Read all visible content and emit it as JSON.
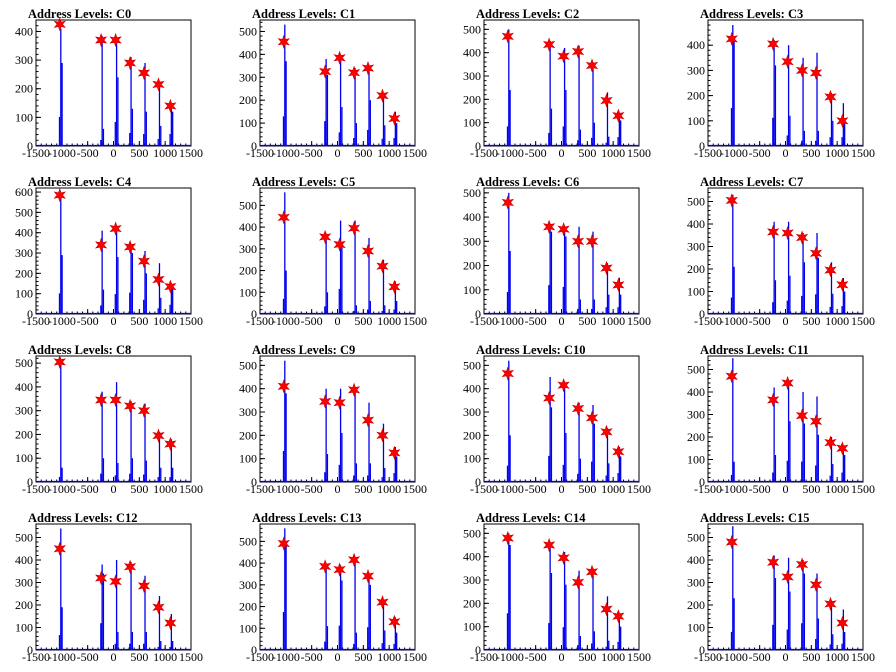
{
  "chart_data": [
    {
      "type": "histogram",
      "title": "Address Levels: C0",
      "xlim": [
        -1500,
        1500
      ],
      "ylim": [
        0,
        440
      ],
      "x_ticks": [
        -1500,
        -1000,
        -500,
        0,
        500,
        1000,
        1500
      ],
      "y_ticks": [
        0,
        100,
        200,
        300,
        400
      ],
      "peaks_x": [
        -1020,
        -220,
        60,
        340,
        610,
        890,
        1120
      ],
      "spike_heights": [
        [
          410,
          290
        ],
        [
          385,
          60
        ],
        [
          380,
          240
        ],
        [
          310,
          130
        ],
        [
          290,
          120
        ],
        [
          220,
          70
        ],
        [
          150,
          120
        ]
      ],
      "markers_y": [
        425,
        370,
        370,
        290,
        255,
        215,
        140
      ]
    },
    {
      "type": "histogram",
      "title": "Address Levels: C1",
      "xlim": [
        -1500,
        1500
      ],
      "ylim": [
        0,
        550
      ],
      "x_ticks": [
        -1500,
        -1000,
        -500,
        0,
        500,
        1000,
        1500
      ],
      "y_ticks": [
        0,
        100,
        200,
        300,
        400,
        500
      ],
      "peaks_x": [
        -1020,
        -220,
        60,
        340,
        610,
        890,
        1120
      ],
      "spike_heights": [
        [
          530,
          370
        ],
        [
          380,
          310
        ],
        [
          390,
          170
        ],
        [
          340,
          100
        ],
        [
          350,
          200
        ],
        [
          230,
          90
        ],
        [
          150,
          100
        ]
      ],
      "markers_y": [
        455,
        325,
        385,
        320,
        340,
        220,
        120
      ]
    },
    {
      "type": "histogram",
      "title": "Address Levels: C2",
      "xlim": [
        -1500,
        1500
      ],
      "ylim": [
        0,
        540
      ],
      "x_ticks": [
        -1500,
        -1000,
        -500,
        0,
        500,
        1000,
        1500
      ],
      "y_ticks": [
        0,
        100,
        200,
        300,
        400,
        500
      ],
      "peaks_x": [
        -1020,
        -220,
        60,
        340,
        610,
        890,
        1120
      ],
      "spike_heights": [
        [
          500,
          240
        ],
        [
          450,
          160
        ],
        [
          420,
          240
        ],
        [
          430,
          70
        ],
        [
          360,
          100
        ],
        [
          230,
          40
        ],
        [
          140,
          110
        ]
      ],
      "markers_y": [
        470,
        435,
        385,
        405,
        345,
        195,
        130
      ]
    },
    {
      "type": "histogram",
      "title": "Address Levels: C3",
      "xlim": [
        -1500,
        1500
      ],
      "ylim": [
        0,
        500
      ],
      "x_ticks": [
        -1500,
        -1000,
        -500,
        0,
        500,
        1000,
        1500
      ],
      "y_ticks": [
        0,
        100,
        200,
        300,
        400
      ],
      "peaks_x": [
        -1020,
        -220,
        60,
        340,
        610,
        890,
        1120
      ],
      "spike_heights": [
        [
          480,
          430
        ],
        [
          420,
          320
        ],
        [
          400,
          120
        ],
        [
          350,
          60
        ],
        [
          370,
          60
        ],
        [
          210,
          100
        ],
        [
          170,
          100
        ]
      ],
      "markers_y": [
        425,
        405,
        335,
        300,
        290,
        195,
        100
      ]
    },
    {
      "type": "histogram",
      "title": "Address Levels: C4",
      "xlim": [
        -1500,
        1500
      ],
      "ylim": [
        0,
        620
      ],
      "x_ticks": [
        -1500,
        -1000,
        -500,
        0,
        500,
        1000,
        1500
      ],
      "y_ticks": [
        0,
        100,
        200,
        300,
        400,
        500,
        600
      ],
      "peaks_x": [
        -1020,
        -220,
        60,
        340,
        610,
        890,
        1120
      ],
      "spike_heights": [
        [
          580,
          290
        ],
        [
          410,
          120
        ],
        [
          420,
          280
        ],
        [
          340,
          300
        ],
        [
          310,
          200
        ],
        [
          250,
          80
        ],
        [
          150,
          130
        ]
      ],
      "markers_y": [
        585,
        340,
        420,
        330,
        260,
        170,
        135
      ]
    },
    {
      "type": "histogram",
      "title": "Address Levels: C5",
      "xlim": [
        -1500,
        1500
      ],
      "ylim": [
        0,
        580
      ],
      "x_ticks": [
        -1500,
        -1000,
        -500,
        0,
        500,
        1000,
        1500
      ],
      "y_ticks": [
        0,
        100,
        200,
        300,
        400,
        500
      ],
      "peaks_x": [
        -1020,
        -220,
        60,
        340,
        610,
        890,
        1120
      ],
      "spike_heights": [
        [
          560,
          200
        ],
        [
          370,
          100
        ],
        [
          430,
          330
        ],
        [
          430,
          40
        ],
        [
          350,
          60
        ],
        [
          250,
          40
        ],
        [
          150,
          60
        ]
      ],
      "markers_y": [
        445,
        355,
        320,
        395,
        290,
        220,
        125
      ]
    },
    {
      "type": "histogram",
      "title": "Address Levels: C6",
      "xlim": [
        -1500,
        1500
      ],
      "ylim": [
        0,
        520
      ],
      "x_ticks": [
        -1500,
        -1000,
        -500,
        0,
        500,
        1000,
        1500
      ],
      "y_ticks": [
        0,
        100,
        200,
        300,
        400,
        500
      ],
      "peaks_x": [
        -1020,
        -220,
        60,
        340,
        610,
        890,
        1120
      ],
      "spike_heights": [
        [
          500,
          260
        ],
        [
          370,
          340
        ],
        [
          360,
          320
        ],
        [
          360,
          60
        ],
        [
          340,
          60
        ],
        [
          210,
          80
        ],
        [
          150,
          80
        ]
      ],
      "markers_y": [
        460,
        360,
        350,
        300,
        300,
        190,
        120
      ]
    },
    {
      "type": "histogram",
      "title": "Address Levels: C7",
      "xlim": [
        -1500,
        1500
      ],
      "ylim": [
        0,
        560
      ],
      "x_ticks": [
        -1500,
        -1000,
        -500,
        0,
        500,
        1000,
        1500
      ],
      "y_ticks": [
        0,
        100,
        200,
        300,
        400,
        500
      ],
      "peaks_x": [
        -1020,
        -220,
        60,
        340,
        610,
        890,
        1120
      ],
      "spike_heights": [
        [
          530,
          210
        ],
        [
          410,
          150
        ],
        [
          410,
          170
        ],
        [
          360,
          230
        ],
        [
          360,
          250
        ],
        [
          230,
          90
        ],
        [
          160,
          100
        ]
      ],
      "markers_y": [
        505,
        365,
        360,
        340,
        270,
        195,
        130
      ]
    },
    {
      "type": "histogram",
      "title": "Address Levels: C8",
      "xlim": [
        -1500,
        1500
      ],
      "ylim": [
        0,
        530
      ],
      "x_ticks": [
        -1500,
        -1000,
        -500,
        0,
        500,
        1000,
        1500
      ],
      "y_ticks": [
        0,
        100,
        200,
        300,
        400,
        500
      ],
      "peaks_x": [
        -1020,
        -220,
        60,
        340,
        610,
        890,
        1120
      ],
      "spike_heights": [
        [
          510,
          60
        ],
        [
          380,
          100
        ],
        [
          420,
          80
        ],
        [
          340,
          100
        ],
        [
          330,
          90
        ],
        [
          210,
          60
        ],
        [
          180,
          60
        ]
      ],
      "markers_y": [
        505,
        345,
        345,
        320,
        300,
        195,
        160
      ]
    },
    {
      "type": "histogram",
      "title": "Address Levels: C9",
      "xlim": [
        -1500,
        1500
      ],
      "ylim": [
        0,
        540
      ],
      "x_ticks": [
        -1500,
        -1000,
        -500,
        0,
        500,
        1000,
        1500
      ],
      "y_ticks": [
        0,
        100,
        200,
        300,
        400,
        500
      ],
      "peaks_x": [
        -1020,
        -220,
        60,
        340,
        610,
        890,
        1120
      ],
      "spike_heights": [
        [
          520,
          380
        ],
        [
          400,
          120
        ],
        [
          400,
          210
        ],
        [
          400,
          80
        ],
        [
          340,
          80
        ],
        [
          250,
          60
        ],
        [
          150,
          110
        ]
      ],
      "markers_y": [
        410,
        345,
        340,
        395,
        265,
        200,
        125
      ]
    },
    {
      "type": "histogram",
      "title": "Address Levels: C10",
      "xlim": [
        -1500,
        1500
      ],
      "ylim": [
        0,
        540
      ],
      "x_ticks": [
        -1500,
        -1000,
        -500,
        0,
        500,
        1000,
        1500
      ],
      "y_ticks": [
        0,
        100,
        200,
        300,
        400,
        500
      ],
      "peaks_x": [
        -1020,
        -220,
        60,
        340,
        610,
        890,
        1120
      ],
      "spike_heights": [
        [
          520,
          200
        ],
        [
          450,
          320
        ],
        [
          430,
          210
        ],
        [
          340,
          100
        ],
        [
          330,
          250
        ],
        [
          230,
          80
        ],
        [
          150,
          110
        ]
      ],
      "markers_y": [
        465,
        360,
        415,
        315,
        275,
        215,
        130
      ]
    },
    {
      "type": "histogram",
      "title": "Address Levels: C11",
      "xlim": [
        -1500,
        1500
      ],
      "ylim": [
        0,
        560
      ],
      "x_ticks": [
        -1500,
        -1000,
        -500,
        0,
        500,
        1000,
        1500
      ],
      "y_ticks": [
        0,
        100,
        200,
        300,
        400,
        500
      ],
      "peaks_x": [
        -1020,
        -220,
        60,
        340,
        610,
        890,
        1120
      ],
      "spike_heights": [
        [
          550,
          90
        ],
        [
          420,
          120
        ],
        [
          440,
          270
        ],
        [
          400,
          260
        ],
        [
          380,
          210
        ],
        [
          200,
          80
        ],
        [
          160,
          120
        ]
      ],
      "markers_y": [
        470,
        365,
        440,
        295,
        270,
        175,
        150
      ]
    },
    {
      "type": "histogram",
      "title": "Address Levels: C12",
      "xlim": [
        -1500,
        1500
      ],
      "ylim": [
        0,
        560
      ],
      "x_ticks": [
        -1500,
        -1000,
        -500,
        0,
        500,
        1000,
        1500
      ],
      "y_ticks": [
        0,
        100,
        200,
        300,
        400,
        500
      ],
      "peaks_x": [
        -1020,
        -220,
        60,
        340,
        610,
        890,
        1120
      ],
      "spike_heights": [
        [
          540,
          190
        ],
        [
          380,
          340
        ],
        [
          400,
          80
        ],
        [
          390,
          80
        ],
        [
          330,
          80
        ],
        [
          240,
          40
        ],
        [
          160,
          40
        ]
      ],
      "markers_y": [
        450,
        320,
        305,
        370,
        285,
        190,
        120
      ]
    },
    {
      "type": "histogram",
      "title": "Address Levels: C13",
      "xlim": [
        -1500,
        1500
      ],
      "ylim": [
        0,
        580
      ],
      "x_ticks": [
        -1500,
        -1000,
        -500,
        0,
        500,
        1000,
        1500
      ],
      "y_ticks": [
        0,
        100,
        200,
        300,
        400,
        500
      ],
      "peaks_x": [
        -1020,
        -220,
        60,
        340,
        610,
        890,
        1120
      ],
      "spike_heights": [
        [
          560,
          500
        ],
        [
          390,
          110
        ],
        [
          390,
          320
        ],
        [
          420,
          80
        ],
        [
          350,
          300
        ],
        [
          230,
          90
        ],
        [
          150,
          80
        ]
      ],
      "markers_y": [
        490,
        385,
        370,
        415,
        340,
        220,
        130
      ]
    },
    {
      "type": "histogram",
      "title": "Address Levels: C14",
      "xlim": [
        -1500,
        1500
      ],
      "ylim": [
        0,
        540
      ],
      "x_ticks": [
        -1500,
        -1000,
        -500,
        0,
        500,
        1000,
        1500
      ],
      "y_ticks": [
        0,
        100,
        200,
        300,
        400,
        500
      ],
      "peaks_x": [
        -1020,
        -220,
        60,
        340,
        610,
        890,
        1120
      ],
      "spike_heights": [
        [
          500,
          450
        ],
        [
          460,
          330
        ],
        [
          420,
          280
        ],
        [
          340,
          60
        ],
        [
          350,
          80
        ],
        [
          230,
          40
        ],
        [
          150,
          100
        ]
      ],
      "markers_y": [
        480,
        450,
        395,
        290,
        335,
        175,
        145
      ]
    },
    {
      "type": "histogram",
      "title": "Address Levels: C15",
      "xlim": [
        -1500,
        1500
      ],
      "ylim": [
        0,
        560
      ],
      "x_ticks": [
        -1500,
        -1000,
        -500,
        0,
        500,
        1000,
        1500
      ],
      "y_ticks": [
        0,
        100,
        200,
        300,
        400,
        500
      ],
      "peaks_x": [
        -1020,
        -220,
        60,
        340,
        610,
        890,
        1120
      ],
      "spike_heights": [
        [
          550,
          230
        ],
        [
          420,
          320
        ],
        [
          410,
          260
        ],
        [
          400,
          340
        ],
        [
          340,
          140
        ],
        [
          220,
          70
        ],
        [
          180,
          80
        ]
      ],
      "markers_y": [
        480,
        390,
        325,
        380,
        290,
        205,
        120
      ]
    }
  ],
  "colors": {
    "spikes": "#0000ee",
    "markers": "#ff0000",
    "axes": "#000000"
  },
  "marker_shape": "star-icon"
}
